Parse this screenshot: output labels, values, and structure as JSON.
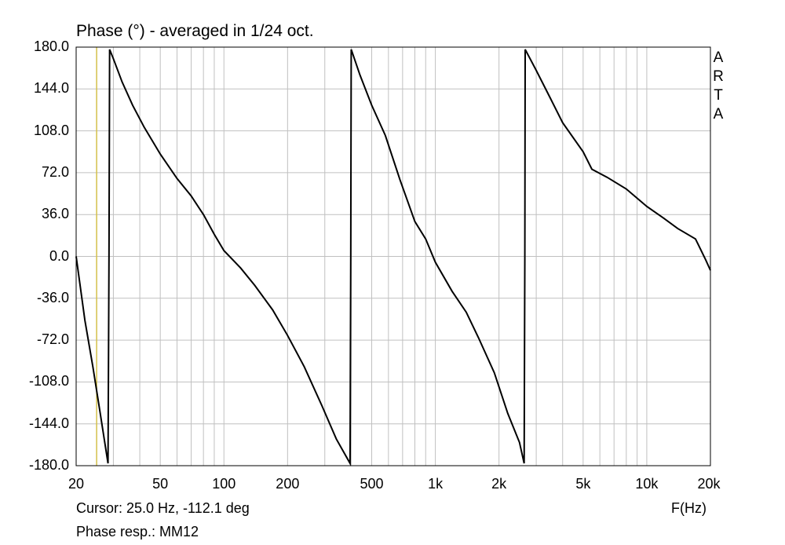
{
  "title": "Phase (°) - averaged in 1/24 oct.",
  "brand": [
    "A",
    "R",
    "T",
    "A"
  ],
  "cursor_text": "Cursor: 25.0 Hz, -112.1 deg",
  "response_text": "Phase resp.:  MM12",
  "colors": {
    "curve": "#000000",
    "grid": "#c0c0c0",
    "cursor": "#d4c04a",
    "frame": "#000000"
  },
  "chart_data": {
    "type": "line",
    "title": "Phase (°) - averaged in 1/24 oct.",
    "xlabel": "F(Hz)",
    "ylabel": "",
    "x_scale": "log",
    "xlim": [
      20,
      20000
    ],
    "ylim": [
      -180,
      180
    ],
    "grid": true,
    "y_ticks": [
      {
        "value": 180,
        "label": "180.0"
      },
      {
        "value": 144,
        "label": "144.0"
      },
      {
        "value": 108,
        "label": "108.0"
      },
      {
        "value": 72,
        "label": "72.0"
      },
      {
        "value": 36,
        "label": "36.0"
      },
      {
        "value": 0,
        "label": "0.0"
      },
      {
        "value": -36,
        "label": "-36.0"
      },
      {
        "value": -72,
        "label": "-72.0"
      },
      {
        "value": -108,
        "label": "-108.0"
      },
      {
        "value": -144,
        "label": "-144.0"
      },
      {
        "value": -180,
        "label": "-180.0"
      }
    ],
    "x_ticks": [
      {
        "value": 20,
        "label": "20"
      },
      {
        "value": 50,
        "label": "50"
      },
      {
        "value": 100,
        "label": "100"
      },
      {
        "value": 200,
        "label": "200"
      },
      {
        "value": 500,
        "label": "500"
      },
      {
        "value": 1000,
        "label": "1k"
      },
      {
        "value": 2000,
        "label": "2k"
      },
      {
        "value": 5000,
        "label": "5k"
      },
      {
        "value": 10000,
        "label": "10k"
      },
      {
        "value": 20000,
        "label": "20k"
      }
    ],
    "cursor": {
      "x": 25.0,
      "y": -112.1
    },
    "series": [
      {
        "values": [
          {
            "x": 20.0,
            "y": 0.0
          },
          {
            "x": 22.0,
            "y": -55.0
          },
          {
            "x": 24.0,
            "y": -95.0
          },
          {
            "x": 26.0,
            "y": -135.0
          },
          {
            "x": 28.3,
            "y": -178.0
          },
          {
            "x": 28.6,
            "y": 0.0
          },
          {
            "x": 28.8,
            "y": 178.0
          },
          {
            "x": 30.0,
            "y": 170.0
          },
          {
            "x": 33.0,
            "y": 150.0
          },
          {
            "x": 37.0,
            "y": 130.0
          },
          {
            "x": 42.0,
            "y": 111.0
          },
          {
            "x": 50.0,
            "y": 88.0
          },
          {
            "x": 60.0,
            "y": 67.0
          },
          {
            "x": 70.0,
            "y": 52.0
          },
          {
            "x": 80.0,
            "y": 36.0
          },
          {
            "x": 90.0,
            "y": 19.0
          },
          {
            "x": 100.0,
            "y": 5.0
          },
          {
            "x": 120.0,
            "y": -10.0
          },
          {
            "x": 140.0,
            "y": -25.0
          },
          {
            "x": 170.0,
            "y": -46.0
          },
          {
            "x": 200.0,
            "y": -68.0
          },
          {
            "x": 240.0,
            "y": -95.0
          },
          {
            "x": 290.0,
            "y": -128.0
          },
          {
            "x": 340.0,
            "y": -157.0
          },
          {
            "x": 395.0,
            "y": -178.0
          },
          {
            "x": 398.0,
            "y": 0.0
          },
          {
            "x": 400.0,
            "y": 178.0
          },
          {
            "x": 440.0,
            "y": 156.0
          },
          {
            "x": 500.0,
            "y": 130.0
          },
          {
            "x": 580.0,
            "y": 104.0
          },
          {
            "x": 680.0,
            "y": 66.0
          },
          {
            "x": 800.0,
            "y": 30.0
          },
          {
            "x": 900.0,
            "y": 15.0
          },
          {
            "x": 1000.0,
            "y": -5.0
          },
          {
            "x": 1200.0,
            "y": -30.0
          },
          {
            "x": 1400.0,
            "y": -48.0
          },
          {
            "x": 1600.0,
            "y": -70.0
          },
          {
            "x": 1900.0,
            "y": -100.0
          },
          {
            "x": 2200.0,
            "y": -135.0
          },
          {
            "x": 2500.0,
            "y": -160.0
          },
          {
            "x": 2630.0,
            "y": -178.0
          },
          {
            "x": 2650.0,
            "y": 0.0
          },
          {
            "x": 2660.0,
            "y": 178.0
          },
          {
            "x": 3000.0,
            "y": 160.0
          },
          {
            "x": 3500.0,
            "y": 136.0
          },
          {
            "x": 4000.0,
            "y": 115.0
          },
          {
            "x": 5000.0,
            "y": 90.0
          },
          {
            "x": 5500.0,
            "y": 75.0
          },
          {
            "x": 6500.0,
            "y": 68.0
          },
          {
            "x": 8000.0,
            "y": 58.0
          },
          {
            "x": 10000.0,
            "y": 43.0
          },
          {
            "x": 12000.0,
            "y": 33.0
          },
          {
            "x": 14000.0,
            "y": 24.0
          },
          {
            "x": 17000.0,
            "y": 15.0
          },
          {
            "x": 19000.0,
            "y": -3.0
          },
          {
            "x": 20000.0,
            "y": -12.0
          }
        ]
      }
    ]
  }
}
